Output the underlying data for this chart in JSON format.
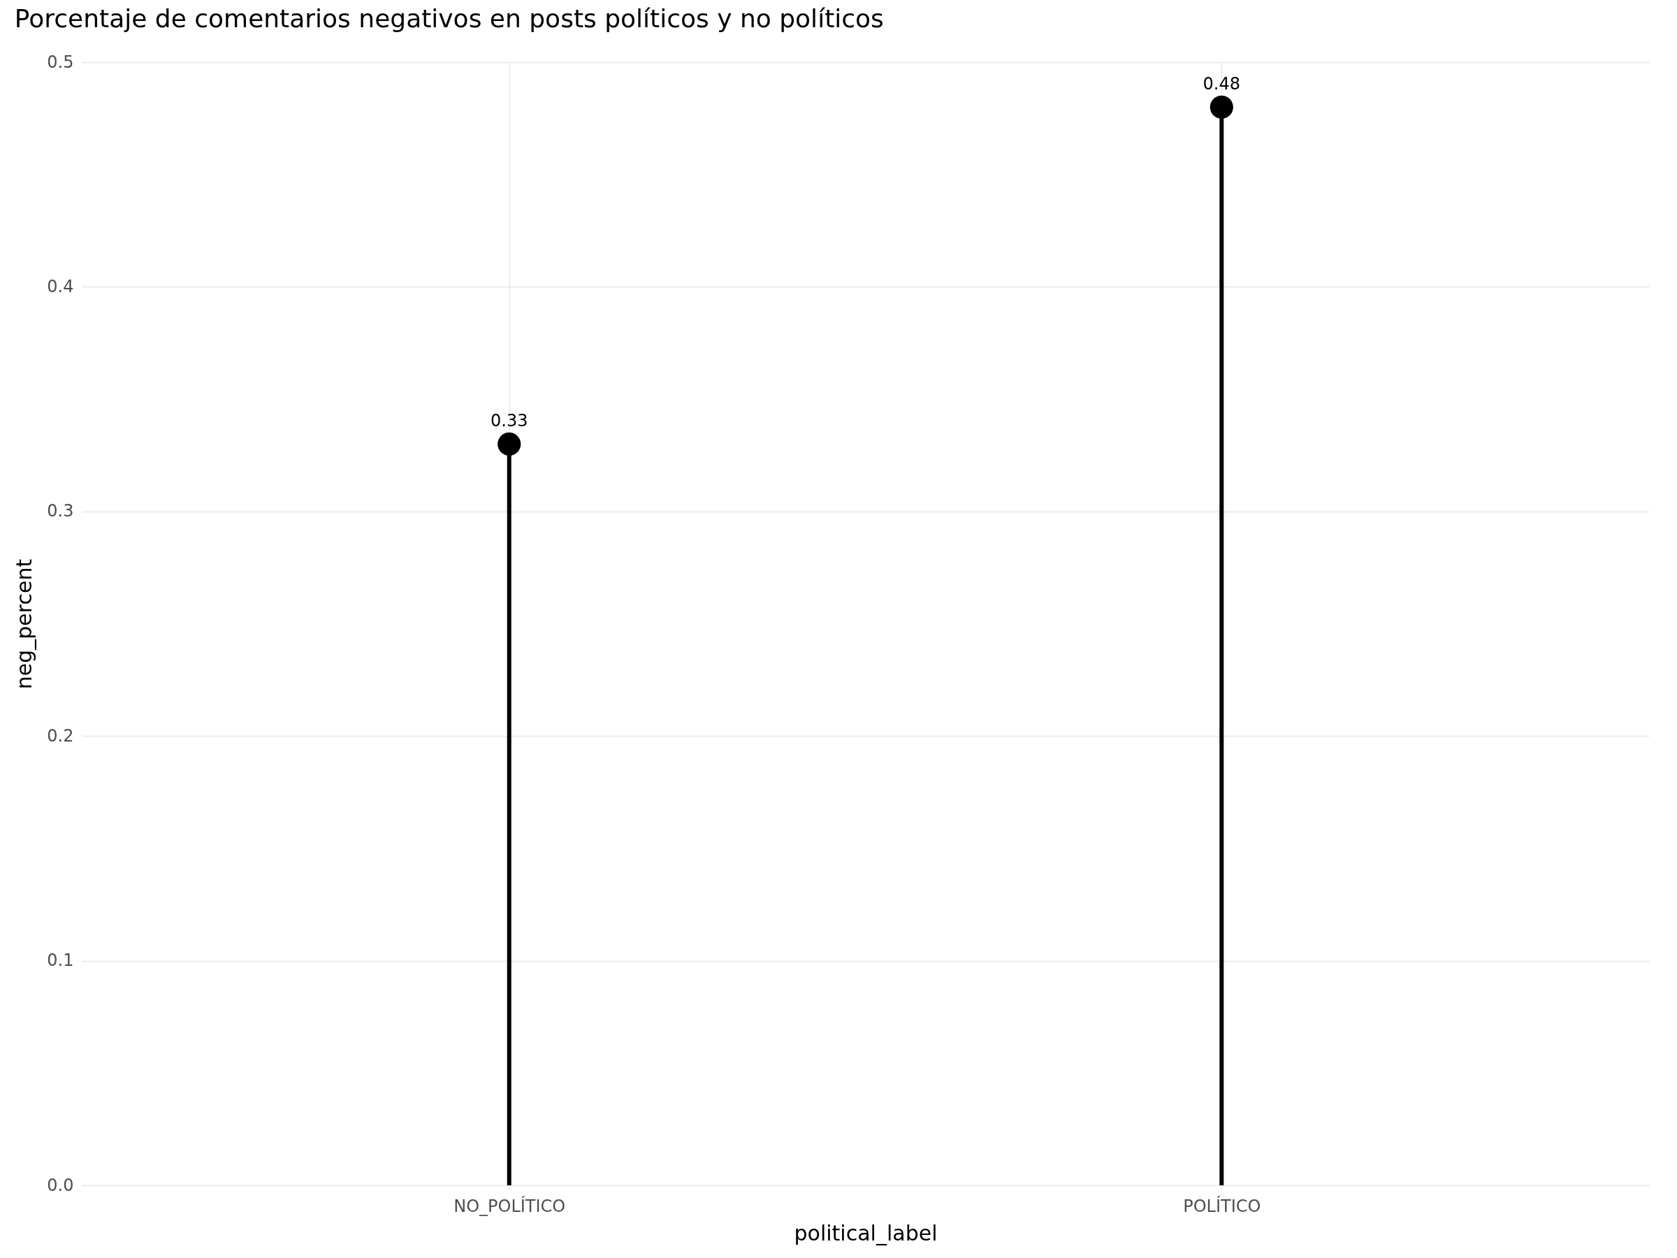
{
  "chart_data": {
    "type": "lollipop",
    "title": "Porcentaje de comentarios negativos en posts políticos y no políticos",
    "xlabel": "political_label",
    "ylabel": "neg_percent",
    "categories": [
      "NO_POLÍTICO",
      "POLÍTICO"
    ],
    "values": [
      0.33,
      0.48
    ],
    "color": "#000000",
    "ylim": [
      0,
      0.5
    ],
    "yticks": [
      {
        "value": 0,
        "label": "0.0"
      },
      0.1,
      0.2,
      0.3,
      0.4,
      0.5
    ],
    "grid": true,
    "marker": "circle",
    "data_labels": true
  }
}
